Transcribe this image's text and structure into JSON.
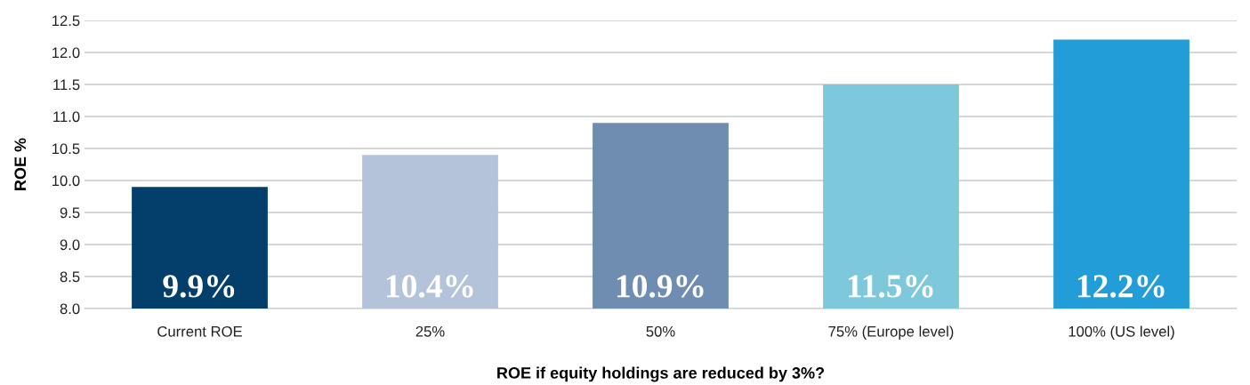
{
  "chart_data": {
    "type": "bar",
    "xlabel": "ROE if equity holdings are reduced by 3%?",
    "ylabel": "ROE %",
    "categories": [
      "Current ROE",
      "25%",
      "50%",
      "75% (Europe level)",
      "100% (US level)"
    ],
    "values": [
      9.9,
      10.4,
      10.9,
      11.5,
      12.2
    ],
    "colors": [
      "#043f6b",
      "#b4c3da",
      "#6f8db1",
      "#7ec8dc",
      "#239dd8"
    ],
    "value_labels": [
      "9.9%",
      "10.4%",
      "10.9%",
      "11.5%",
      "12.2%"
    ],
    "ylim": [
      8.0,
      12.5
    ],
    "yticks": [
      {
        "value": 8.0,
        "label": "8.0"
      },
      8.5,
      {
        "value": 9.0,
        "label": "9.0"
      },
      9.5,
      {
        "value": 10.0,
        "label": "10.0"
      },
      10.5,
      {
        "value": 11.0,
        "label": "11.0"
      },
      11.5,
      {
        "value": 12.0,
        "label": "12.0"
      },
      12.5
    ],
    "grid": "y",
    "legend": false
  }
}
